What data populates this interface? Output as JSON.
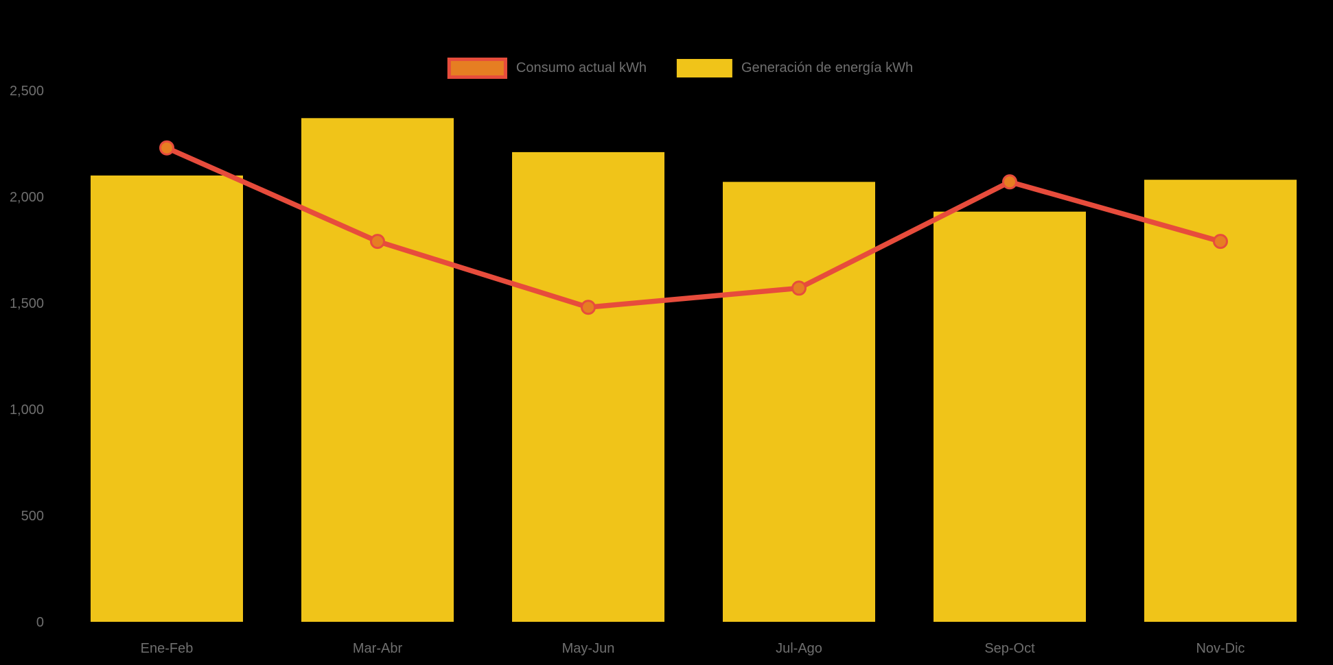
{
  "chart_data": {
    "type": "bar+line",
    "title": "",
    "xlabel": "",
    "ylabel": "",
    "categories": [
      "Ene-Feb",
      "Mar-Abr",
      "May-Jun",
      "Jul-Ago",
      "Sep-Oct",
      "Nov-Dic"
    ],
    "series": [
      {
        "name": "Consumo actual kWh",
        "type": "line",
        "color": "#e74c3c",
        "marker_color": "#e67e22",
        "values": [
          2230,
          1790,
          1480,
          1570,
          2070,
          1790
        ]
      },
      {
        "name": "Generación de energía kWh",
        "type": "bar",
        "color": "#f0c419",
        "values": [
          2100,
          2370,
          2210,
          2070,
          1930,
          2080
        ]
      }
    ],
    "ylim": [
      0,
      2500
    ],
    "yticks": [
      0,
      500,
      1000,
      1500,
      2000,
      2500
    ],
    "ytick_labels": [
      "0",
      "500",
      "1,000",
      "1,500",
      "2,000",
      "2,500"
    ],
    "grid": false,
    "legend_position": "top-center"
  },
  "colors": {
    "background": "#000000",
    "bar": "#f0c419",
    "line": "#e74c3c",
    "marker": "#e67e22",
    "text": "#6f6f6f"
  }
}
